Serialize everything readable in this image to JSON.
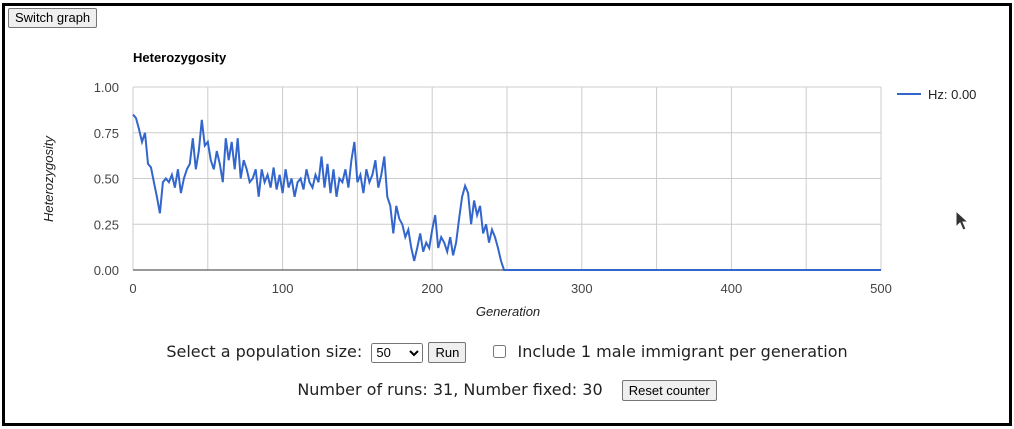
{
  "toolbar": {
    "switch_label": "Switch graph"
  },
  "chart_data": {
    "type": "line",
    "title": "Heterozygosity",
    "xlabel": "Generation",
    "ylabel": "Heterozygosity",
    "xlim": [
      0,
      500
    ],
    "ylim": [
      0,
      1
    ],
    "x_ticks": [
      "0",
      "100",
      "200",
      "300",
      "400",
      "500"
    ],
    "y_ticks": [
      "0.00",
      "0.25",
      "0.50",
      "0.75",
      "1.00"
    ],
    "grid": true,
    "legend_position": "right",
    "line_color": "#3366cc",
    "series": [
      {
        "name": "Hz: 0.00",
        "points": [
          [
            0,
            0.85
          ],
          [
            2,
            0.83
          ],
          [
            4,
            0.77
          ],
          [
            6,
            0.7
          ],
          [
            8,
            0.75
          ],
          [
            10,
            0.58
          ],
          [
            12,
            0.56
          ],
          [
            14,
            0.48
          ],
          [
            16,
            0.4
          ],
          [
            18,
            0.31
          ],
          [
            20,
            0.48
          ],
          [
            22,
            0.5
          ],
          [
            24,
            0.48
          ],
          [
            26,
            0.52
          ],
          [
            28,
            0.45
          ],
          [
            30,
            0.55
          ],
          [
            32,
            0.42
          ],
          [
            34,
            0.5
          ],
          [
            36,
            0.55
          ],
          [
            38,
            0.58
          ],
          [
            40,
            0.72
          ],
          [
            42,
            0.55
          ],
          [
            44,
            0.65
          ],
          [
            46,
            0.82
          ],
          [
            48,
            0.68
          ],
          [
            50,
            0.7
          ],
          [
            52,
            0.6
          ],
          [
            54,
            0.55
          ],
          [
            56,
            0.65
          ],
          [
            58,
            0.58
          ],
          [
            60,
            0.48
          ],
          [
            62,
            0.72
          ],
          [
            64,
            0.6
          ],
          [
            66,
            0.7
          ],
          [
            68,
            0.55
          ],
          [
            70,
            0.72
          ],
          [
            72,
            0.5
          ],
          [
            74,
            0.6
          ],
          [
            76,
            0.55
          ],
          [
            78,
            0.48
          ],
          [
            80,
            0.5
          ],
          [
            82,
            0.55
          ],
          [
            84,
            0.4
          ],
          [
            86,
            0.55
          ],
          [
            88,
            0.48
          ],
          [
            90,
            0.52
          ],
          [
            92,
            0.45
          ],
          [
            94,
            0.56
          ],
          [
            96,
            0.44
          ],
          [
            98,
            0.52
          ],
          [
            100,
            0.42
          ],
          [
            102,
            0.55
          ],
          [
            104,
            0.45
          ],
          [
            106,
            0.5
          ],
          [
            108,
            0.4
          ],
          [
            110,
            0.48
          ],
          [
            112,
            0.5
          ],
          [
            114,
            0.44
          ],
          [
            116,
            0.55
          ],
          [
            118,
            0.48
          ],
          [
            120,
            0.45
          ],
          [
            122,
            0.52
          ],
          [
            124,
            0.48
          ],
          [
            126,
            0.62
          ],
          [
            128,
            0.45
          ],
          [
            130,
            0.58
          ],
          [
            132,
            0.42
          ],
          [
            134,
            0.55
          ],
          [
            136,
            0.4
          ],
          [
            138,
            0.5
          ],
          [
            140,
            0.48
          ],
          [
            142,
            0.55
          ],
          [
            144,
            0.45
          ],
          [
            146,
            0.6
          ],
          [
            148,
            0.7
          ],
          [
            150,
            0.48
          ],
          [
            152,
            0.52
          ],
          [
            154,
            0.42
          ],
          [
            156,
            0.55
          ],
          [
            158,
            0.48
          ],
          [
            160,
            0.52
          ],
          [
            162,
            0.6
          ],
          [
            164,
            0.45
          ],
          [
            166,
            0.52
          ],
          [
            168,
            0.62
          ],
          [
            170,
            0.4
          ],
          [
            172,
            0.35
          ],
          [
            174,
            0.2
          ],
          [
            176,
            0.35
          ],
          [
            178,
            0.28
          ],
          [
            180,
            0.25
          ],
          [
            182,
            0.18
          ],
          [
            184,
            0.22
          ],
          [
            186,
            0.12
          ],
          [
            188,
            0.05
          ],
          [
            190,
            0.12
          ],
          [
            192,
            0.2
          ],
          [
            194,
            0.1
          ],
          [
            196,
            0.15
          ],
          [
            198,
            0.12
          ],
          [
            200,
            0.22
          ],
          [
            202,
            0.3
          ],
          [
            204,
            0.12
          ],
          [
            206,
            0.18
          ],
          [
            208,
            0.15
          ],
          [
            210,
            0.1
          ],
          [
            212,
            0.18
          ],
          [
            214,
            0.08
          ],
          [
            216,
            0.15
          ],
          [
            218,
            0.28
          ],
          [
            220,
            0.4
          ],
          [
            222,
            0.46
          ],
          [
            224,
            0.42
          ],
          [
            226,
            0.25
          ],
          [
            228,
            0.38
          ],
          [
            230,
            0.3
          ],
          [
            232,
            0.35
          ],
          [
            234,
            0.2
          ],
          [
            236,
            0.25
          ],
          [
            238,
            0.15
          ],
          [
            240,
            0.22
          ],
          [
            242,
            0.18
          ],
          [
            244,
            0.12
          ],
          [
            246,
            0.05
          ],
          [
            248,
            0.0
          ],
          [
            500,
            0.0
          ]
        ]
      }
    ]
  },
  "controls": {
    "pop_label": "Select a population size:",
    "pop_selected": "50",
    "run_label": "Run",
    "immigrant_label": "Include 1 male immigrant per generation",
    "runs_text": "Number of runs: 31, Number fixed: 30",
    "reset_label": "Reset counter"
  }
}
